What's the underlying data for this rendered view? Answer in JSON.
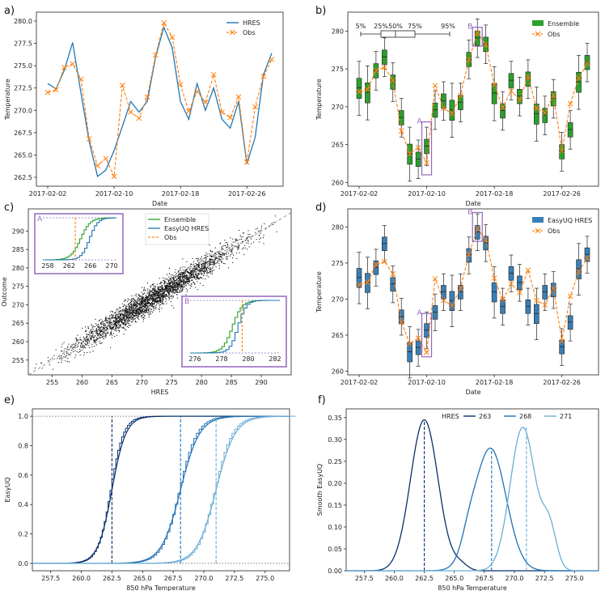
{
  "colors": {
    "hres": "#1f77b4",
    "obs": "#ff7f0e",
    "ensemble": "#2ca02c",
    "easyuq": "#3a7fb5",
    "highlight": "#9467bd",
    "c263": "#08306b",
    "c268": "#2171b5",
    "c271": "#6baed6"
  },
  "panels": {
    "a": {
      "label": "a)",
      "xlabel": "Date",
      "ylabel": "Temperature",
      "legend": [
        "HRES",
        "Obs"
      ]
    },
    "b": {
      "label": "b)",
      "xlabel": "Date",
      "ylabel": "Temperature",
      "legend": [
        "Ensemble",
        "Obs"
      ],
      "quantile_labels": [
        "5%",
        "25%",
        "50%",
        "75%",
        "95%"
      ],
      "annotations": [
        "A",
        "B"
      ]
    },
    "c": {
      "label": "c)",
      "xlabel": "HRES",
      "ylabel": "Outcome",
      "legend": [
        "Ensemble",
        "EasyUQ HRES",
        "Obs"
      ],
      "annotations": [
        "A",
        "B"
      ]
    },
    "d": {
      "label": "d)",
      "xlabel": "Date",
      "ylabel": "Temperature",
      "legend": [
        "EasyUQ HRES",
        "Obs"
      ],
      "annotations": [
        "A",
        "B"
      ]
    },
    "e": {
      "label": "e)",
      "xlabel": "850 hPa Temperature",
      "ylabel": "EasyUQ"
    },
    "f": {
      "label": "f)",
      "xlabel": "850 hPa Temperature",
      "ylabel": "Smooth EasyUQ",
      "legend_title": "HRES",
      "legend": [
        "263",
        "268",
        "271"
      ]
    }
  },
  "chart_data": [
    {
      "id": "a",
      "type": "line",
      "x_ticks": [
        "2017-02-02",
        "2017-02-10",
        "2017-02-18",
        "2017-02-26"
      ],
      "ylim": [
        261.5,
        281
      ],
      "y_ticks": [
        "262.5",
        "265.0",
        "267.5",
        "270.0",
        "272.5",
        "275.0",
        "277.5",
        "280.0"
      ],
      "series": [
        {
          "name": "HRES",
          "values": [
            273.0,
            272.4,
            274.5,
            277.6,
            272.0,
            266.5,
            262.6,
            263.3,
            265.5,
            268.2,
            271.0,
            269.8,
            271.0,
            276.0,
            279.3,
            277.0,
            271.0,
            269.0,
            273.0,
            270.0,
            272.5,
            269.0,
            268.0,
            271.0,
            264.0,
            267.0,
            274.0,
            276.4
          ]
        },
        {
          "name": "Obs",
          "values": [
            272.0,
            272.3,
            274.8,
            275.2,
            273.5,
            266.8,
            263.8,
            264.6,
            262.6,
            272.8,
            269.8,
            269.1,
            271.5,
            276.2,
            279.8,
            278.2,
            272.9,
            269.9,
            272.1,
            270.9,
            274.0,
            269.8,
            269.2,
            271.5,
            264.2,
            270.4,
            273.8,
            275.7
          ]
        }
      ]
    },
    {
      "id": "b",
      "type": "boxplot",
      "x_ticks": [
        "2017-02-02",
        "2017-02-10",
        "2017-02-18",
        "2017-02-26"
      ],
      "ylim": [
        259.5,
        282.5
      ],
      "y_ticks": [
        "260",
        "265",
        "270",
        "275",
        "280"
      ],
      "series": [
        {
          "name": "Ensemble",
          "medians": [
            272.5,
            271.9,
            274.8,
            276.6,
            273.3,
            268.6,
            263.8,
            263.1,
            264.8,
            269.6,
            270.8,
            269.6,
            270.6,
            276.3,
            279.1,
            278.3,
            271.8,
            269.5,
            273.5,
            271.4,
            273.7,
            269.1,
            268.9,
            271.1,
            264.1,
            267.0,
            273.3,
            275.9
          ]
        },
        {
          "name": "Obs",
          "values": [
            272.0,
            272.3,
            274.8,
            275.2,
            273.5,
            266.8,
            263.8,
            264.6,
            262.6,
            272.8,
            269.8,
            269.1,
            271.5,
            276.2,
            279.8,
            278.2,
            272.9,
            269.9,
            272.1,
            270.9,
            274.0,
            269.8,
            269.2,
            271.5,
            264.2,
            270.4,
            273.8,
            275.7
          ]
        }
      ]
    },
    {
      "id": "c",
      "type": "scatter",
      "xlim": [
        251,
        295
      ],
      "ylim": [
        251,
        296
      ],
      "x_ticks": [
        "255",
        "260",
        "265",
        "270",
        "275",
        "280",
        "285",
        "290"
      ],
      "y_ticks": [
        "255",
        "260",
        "265",
        "270",
        "275",
        "280",
        "285",
        "290"
      ],
      "inset_a_ticks": [
        "258",
        "262",
        "266",
        "270"
      ],
      "inset_b_ticks": [
        "276",
        "278",
        "280",
        "282"
      ],
      "n_points": 3000
    },
    {
      "id": "d",
      "type": "boxplot",
      "x_ticks": [
        "2017-02-02",
        "2017-02-10",
        "2017-02-18",
        "2017-02-26"
      ],
      "ylim": [
        259.5,
        282.5
      ],
      "y_ticks": [
        "260",
        "265",
        "270",
        "275",
        "280"
      ],
      "series": [
        {
          "name": "EasyUQ HRES",
          "medians": [
            273.0,
            272.3,
            274.4,
            277.7,
            272.1,
            267.6,
            262.7,
            263.3,
            265.7,
            268.2,
            271.0,
            269.8,
            271.0,
            276.1,
            279.3,
            277.8,
            271.0,
            269.0,
            273.6,
            272.3,
            269.0,
            268.0,
            271.0,
            271.3,
            263.4,
            266.8,
            274.2,
            276.2
          ]
        },
        {
          "name": "Obs",
          "values": [
            272.0,
            272.3,
            274.8,
            275.2,
            273.5,
            266.8,
            263.8,
            264.6,
            262.6,
            272.8,
            269.8,
            269.1,
            271.5,
            276.2,
            279.8,
            278.2,
            272.9,
            269.9,
            272.1,
            270.9,
            274.0,
            269.8,
            269.2,
            271.5,
            264.2,
            270.4,
            273.8,
            275.7
          ]
        }
      ]
    },
    {
      "id": "e",
      "type": "line",
      "xlim": [
        256,
        277
      ],
      "ylim": [
        -0.05,
        1.05
      ],
      "x_ticks": [
        "257.5",
        "260.0",
        "262.5",
        "265.0",
        "267.5",
        "270.0",
        "272.5",
        "275.0"
      ],
      "y_ticks": [
        "0.0",
        "0.2",
        "0.4",
        "0.6",
        "0.8",
        "1.0"
      ],
      "series": [
        {
          "name": "263",
          "center": 262.5,
          "scale": 0.95
        },
        {
          "name": "268",
          "center": 268.1,
          "scale": 1.3
        },
        {
          "name": "271",
          "center": 271.0,
          "scale": 1.3
        }
      ]
    },
    {
      "id": "f",
      "type": "line",
      "xlim": [
        256,
        277
      ],
      "ylim": [
        0,
        0.37
      ],
      "x_ticks": [
        "257.5",
        "260.0",
        "262.5",
        "265.0",
        "267.5",
        "270.0",
        "272.5",
        "275.0"
      ],
      "y_ticks": [
        "0.00",
        "0.05",
        "0.10",
        "0.15",
        "0.20",
        "0.25",
        "0.30",
        "0.35"
      ],
      "series": [
        {
          "name": "263",
          "center": 262.5,
          "peak": 0.345
        },
        {
          "name": "268",
          "center": 268.1,
          "peak": 0.28
        },
        {
          "name": "271",
          "center": 271.0,
          "peak": 0.328
        }
      ]
    }
  ]
}
